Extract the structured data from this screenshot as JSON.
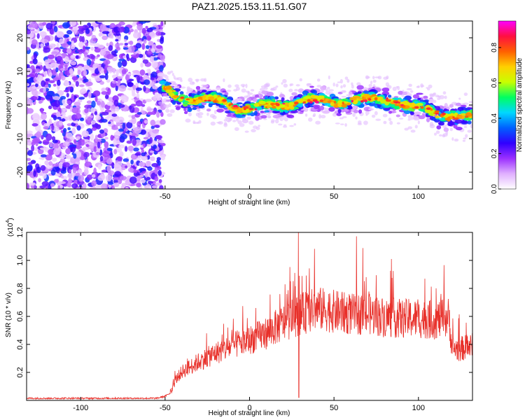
{
  "figure": {
    "title": "PAZ1.2025.153.11.51.G07"
  },
  "chart_data": [
    {
      "type": "heatmap",
      "panel": "spectrogram",
      "xlabel": "Height of straight line (km)",
      "ylabel": "Frequency (Hz)",
      "xlim": [
        -132,
        132
      ],
      "ylim": [
        -25,
        25
      ],
      "xticks": [
        -100,
        -50,
        0,
        50,
        100
      ],
      "yticks": [
        -20,
        -10,
        0,
        10,
        20
      ],
      "noise_region_x": [
        -132,
        -51
      ],
      "signal_ridge": {
        "x": [
          -53,
          -45,
          -35,
          -25,
          -15,
          -5,
          5,
          15,
          25,
          35,
          45,
          55,
          65,
          75,
          85,
          95,
          105,
          115,
          125,
          132
        ],
        "frequency": [
          6,
          3,
          1.5,
          1.5,
          1,
          -1,
          -1,
          0,
          0.5,
          1,
          1.5,
          1,
          1,
          2,
          1.5,
          -1,
          -1,
          -3,
          -4,
          -3.5
        ]
      },
      "colorbar": {
        "label": "Normalized spectral amplitude",
        "range": [
          0,
          0.95
        ],
        "ticks": [
          "0.0",
          "0.2",
          "0.4",
          "0.6",
          "0.8"
        ],
        "tick_values": [
          0,
          0.2,
          0.4,
          0.6,
          0.8
        ],
        "colormap": [
          "#ffffff",
          "#e0b0ff",
          "#9b30ff",
          "#3000ff",
          "#0060ff",
          "#00d8ff",
          "#00ff60",
          "#c8ff00",
          "#ffd000",
          "#ff6000",
          "#ff1040",
          "#ff00ff"
        ]
      }
    },
    {
      "type": "line",
      "panel": "snr",
      "xlabel": "Height of straight line (km)",
      "ylabel": "SNR (10 * v/v)",
      "yscale_label": "(x10",
      "yscale_exp": "4",
      "xlim": [
        -132,
        132
      ],
      "ylim": [
        0,
        1.2
      ],
      "xticks": [
        -100,
        -50,
        0,
        50,
        100
      ],
      "yticks": [
        0.2,
        0.4,
        0.6,
        0.8,
        1.0,
        1.2
      ],
      "ytick_labels": [
        "0.2",
        "0.4",
        "0.6",
        "0.8",
        "1.0",
        "1.2"
      ],
      "series": [
        {
          "color": "#e8302a",
          "envelope_x": [
            -132,
            -55,
            -50,
            -46,
            -44,
            -40,
            -30,
            -20,
            -10,
            0,
            10,
            20,
            30,
            40,
            50,
            60,
            70,
            80,
            90,
            100,
            110,
            118,
            120,
            125,
            132
          ],
          "envelope_y": [
            0.015,
            0.015,
            0.03,
            0.06,
            0.14,
            0.2,
            0.27,
            0.33,
            0.38,
            0.42,
            0.47,
            0.54,
            0.6,
            0.64,
            0.62,
            0.6,
            0.6,
            0.58,
            0.57,
            0.57,
            0.56,
            0.58,
            0.36,
            0.36,
            0.38
          ],
          "spike_x": [
            29
          ],
          "spike_y": [
            1.22
          ]
        }
      ]
    }
  ]
}
